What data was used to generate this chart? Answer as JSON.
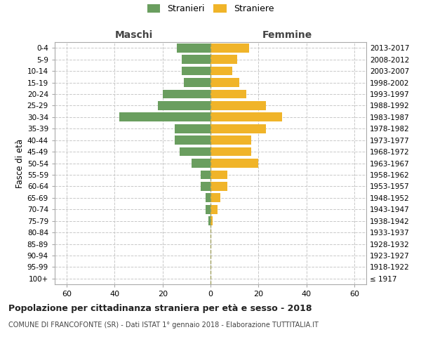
{
  "age_groups": [
    "100+",
    "95-99",
    "90-94",
    "85-89",
    "80-84",
    "75-79",
    "70-74",
    "65-69",
    "60-64",
    "55-59",
    "50-54",
    "45-49",
    "40-44",
    "35-39",
    "30-34",
    "25-29",
    "20-24",
    "15-19",
    "10-14",
    "5-9",
    "0-4"
  ],
  "birth_years": [
    "≤ 1917",
    "1918-1922",
    "1923-1927",
    "1928-1932",
    "1933-1937",
    "1938-1942",
    "1943-1947",
    "1948-1952",
    "1953-1957",
    "1958-1962",
    "1963-1967",
    "1968-1972",
    "1973-1977",
    "1978-1982",
    "1983-1987",
    "1988-1992",
    "1993-1997",
    "1998-2002",
    "2003-2007",
    "2008-2012",
    "2013-2017"
  ],
  "males": [
    0,
    0,
    0,
    0,
    0,
    1,
    2,
    2,
    4,
    4,
    8,
    13,
    15,
    15,
    38,
    22,
    20,
    11,
    12,
    12,
    14
  ],
  "females": [
    0,
    0,
    0,
    0,
    0,
    1,
    3,
    4,
    7,
    7,
    20,
    17,
    17,
    23,
    30,
    23,
    15,
    12,
    9,
    11,
    16
  ],
  "male_color": "#6a9e5f",
  "female_color": "#f0b429",
  "background_color": "#ffffff",
  "grid_color": "#c8c8c8",
  "title": "Popolazione per cittadinanza straniera per età e sesso - 2018",
  "subtitle": "COMUNE DI FRANCOFONTE (SR) - Dati ISTAT 1° gennaio 2018 - Elaborazione TUTTITALIA.IT",
  "xlabel_left": "Maschi",
  "xlabel_right": "Femmine",
  "ylabel": "Fasce di età",
  "legend_male": "Stranieri",
  "legend_female": "Straniere",
  "xlim": 65,
  "center_line_color": "#a0a060",
  "spine_color": "#aaaaaa"
}
